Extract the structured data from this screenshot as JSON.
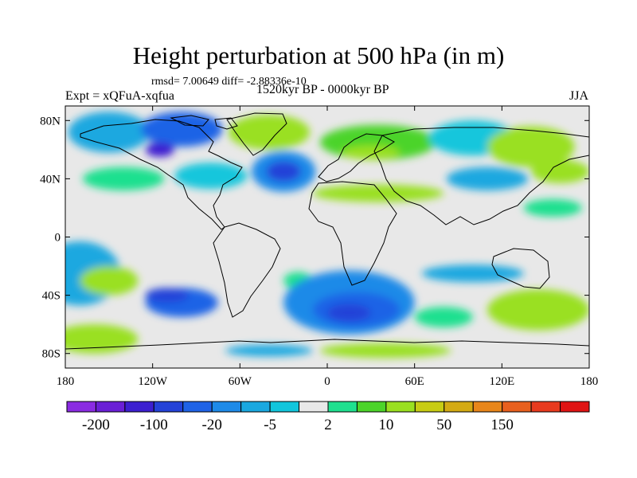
{
  "title": "Height perturbation at 500 hPa (in m)",
  "stats": "rmsd= 7.00649 diff= -2.88336e-10",
  "experiment": "Expt = xQFuA-xqfua",
  "period": "1520kyr BP - 0000kyr BP",
  "season": "JJA",
  "axes": {
    "x_range": [
      -180,
      180
    ],
    "y_range": [
      -90,
      90
    ],
    "x_ticks": [
      {
        "value": -180,
        "label": "180"
      },
      {
        "value": -120,
        "label": "120W"
      },
      {
        "value": -60,
        "label": "60W"
      },
      {
        "value": 0,
        "label": "0"
      },
      {
        "value": 60,
        "label": "60E"
      },
      {
        "value": 120,
        "label": "120E"
      },
      {
        "value": 180,
        "label": "180"
      }
    ],
    "y_ticks": [
      {
        "value": 80,
        "label": "80N"
      },
      {
        "value": 40,
        "label": "40N"
      },
      {
        "value": 0,
        "label": "0"
      },
      {
        "value": -40,
        "label": "40S"
      },
      {
        "value": -80,
        "label": "80S"
      }
    ]
  },
  "colorbar": {
    "colors": [
      "#8a2be2",
      "#6a1fd6",
      "#3c1fd0",
      "#2442d8",
      "#1f63e6",
      "#1e8ae8",
      "#1aa8e0",
      "#12c6dc",
      "#e8e8e8",
      "#1fe08f",
      "#4cd42a",
      "#9ae020",
      "#c8cc14",
      "#d4aa14",
      "#e8861a",
      "#e8601e",
      "#e83a1e",
      "#e01414"
    ],
    "labels": [
      {
        "boundary": 1,
        "text": "-200"
      },
      {
        "boundary": 3,
        "text": "-100"
      },
      {
        "boundary": 5,
        "text": "-20"
      },
      {
        "boundary": 7,
        "text": "-5"
      },
      {
        "boundary": 9,
        "text": "2"
      },
      {
        "boundary": 11,
        "text": "10"
      },
      {
        "boundary": 13,
        "text": "50"
      },
      {
        "boundary": 15,
        "text": "150"
      }
    ]
  },
  "field_blobs": [
    {
      "lon": -150,
      "lat": 72,
      "rlon": 28,
      "rlat": 14,
      "color": "#1aa8e0"
    },
    {
      "lon": -100,
      "lat": 74,
      "rlon": 28,
      "rlat": 12,
      "color": "#1f63e6"
    },
    {
      "lon": -115,
      "lat": 60,
      "rlon": 10,
      "rlat": 5,
      "color": "#3c1fd0"
    },
    {
      "lon": -40,
      "lat": 72,
      "rlon": 28,
      "rlat": 12,
      "color": "#9ae020"
    },
    {
      "lon": -30,
      "lat": 45,
      "rlon": 22,
      "rlat": 14,
      "color": "#1e8ae8"
    },
    {
      "lon": -30,
      "lat": 45,
      "rlon": 12,
      "rlat": 7,
      "color": "#2442d8"
    },
    {
      "lon": 35,
      "lat": 65,
      "rlon": 40,
      "rlat": 12,
      "color": "#4cd42a"
    },
    {
      "lon": 30,
      "lat": 58,
      "rlon": 20,
      "rlat": 5,
      "color": "#9ae020"
    },
    {
      "lon": 100,
      "lat": 68,
      "rlon": 30,
      "rlat": 12,
      "color": "#12c6dc"
    },
    {
      "lon": 140,
      "lat": 62,
      "rlon": 30,
      "rlat": 14,
      "color": "#9ae020"
    },
    {
      "lon": 160,
      "lat": 45,
      "rlon": 20,
      "rlat": 8,
      "color": "#9ae020"
    },
    {
      "lon": -140,
      "lat": 40,
      "rlon": 28,
      "rlat": 8,
      "color": "#1fe08f"
    },
    {
      "lon": -80,
      "lat": 42,
      "rlon": 25,
      "rlat": 9,
      "color": "#12c6dc"
    },
    {
      "lon": 35,
      "lat": 30,
      "rlon": 45,
      "rlat": 6,
      "color": "#9ae020"
    },
    {
      "lon": 110,
      "lat": 40,
      "rlon": 28,
      "rlat": 8,
      "color": "#1aa8e0"
    },
    {
      "lon": 155,
      "lat": 20,
      "rlon": 20,
      "rlat": 6,
      "color": "#1fe08f"
    },
    {
      "lon": -170,
      "lat": -25,
      "rlon": 28,
      "rlat": 22,
      "color": "#1aa8e0"
    },
    {
      "lon": -150,
      "lat": -30,
      "rlon": 20,
      "rlat": 10,
      "color": "#9ae020"
    },
    {
      "lon": -100,
      "lat": -45,
      "rlon": 25,
      "rlat": 10,
      "color": "#1f63e6"
    },
    {
      "lon": -110,
      "lat": -40,
      "rlon": 15,
      "rlat": 5,
      "color": "#2442d8"
    },
    {
      "lon": -160,
      "lat": -70,
      "rlon": 30,
      "rlat": 10,
      "color": "#9ae020"
    },
    {
      "lon": -20,
      "lat": -30,
      "rlon": 10,
      "rlat": 6,
      "color": "#1fe08f"
    },
    {
      "lon": 15,
      "lat": -45,
      "rlon": 45,
      "rlat": 22,
      "color": "#1e8ae8"
    },
    {
      "lon": 20,
      "lat": -50,
      "rlon": 30,
      "rlat": 12,
      "color": "#1f63e6"
    },
    {
      "lon": 15,
      "lat": -52,
      "rlon": 15,
      "rlat": 6,
      "color": "#2442d8"
    },
    {
      "lon": 100,
      "lat": -25,
      "rlon": 35,
      "rlat": 6,
      "color": "#1aa8e0"
    },
    {
      "lon": 145,
      "lat": -50,
      "rlon": 35,
      "rlat": 14,
      "color": "#9ae020"
    },
    {
      "lon": 80,
      "lat": -55,
      "rlon": 20,
      "rlat": 7,
      "color": "#1fe08f"
    },
    {
      "lon": 40,
      "lat": -78,
      "rlon": 45,
      "rlat": 5,
      "color": "#9ae020"
    },
    {
      "lon": -40,
      "lat": -78,
      "rlon": 30,
      "rlat": 4,
      "color": "#1aa8e0"
    }
  ]
}
